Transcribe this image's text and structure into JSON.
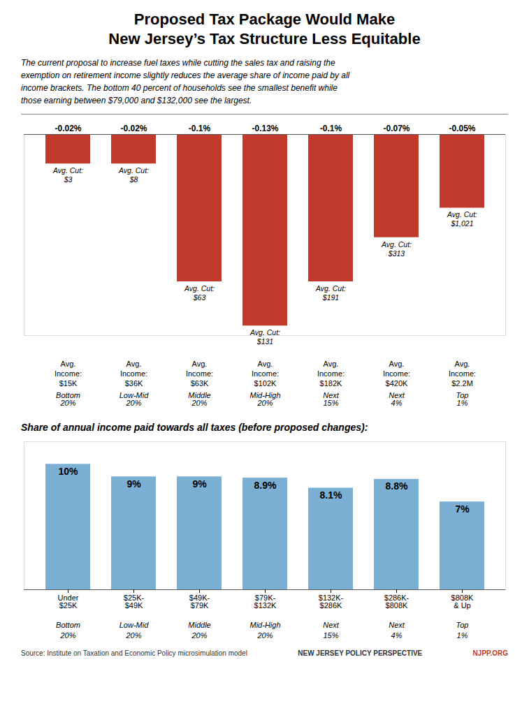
{
  "title": "Proposed Tax Package Would Make\nNew Jersey’s Tax Structure Less Equitable",
  "subtitle": "The current proposal to increase fuel taxes while cutting the sales tax and raising the\nexemption on retirement income slightly reduces the average share of income paid by all\nincome brackets. The bottom 40 percent of households see the smallest benefit while\nthose earning between $79,000 and $132,000 see the largest.",
  "source": "Source: Institute on Taxation and Economic Policy microsimulation model",
  "org": "NEW JERSEY POLICY PERSPECTIVE",
  "site": "NJPP.ORG",
  "site_color": "#c0392b",
  "chart_data": [
    {
      "type": "bar",
      "categories": [
        "Bottom\n20%",
        "Low-Mid\n20%",
        "Middle\n20%",
        "Mid-High\n20%",
        "Next\n15%",
        "Next\n4%",
        "Top\n1%"
      ],
      "values": [
        -0.02,
        -0.02,
        -0.1,
        -0.13,
        -0.1,
        -0.07,
        -0.05
      ],
      "value_labels": [
        "-0.02%",
        "-0.02%",
        "-0.1%",
        "-0.13%",
        "-0.1%",
        "-0.07%",
        "-0.05%"
      ],
      "data_labels": true,
      "color": "#c0392b",
      "ylim": [
        -0.1365,
        0
      ],
      "tick_labels": "x",
      "cut_labels": [
        "Avg. Cut:\n$3",
        "Avg. Cut:\n$8",
        "Avg. Cut:\n$63",
        "Avg. Cut:\n$131",
        "Avg. Cut:\n$191",
        "Avg. Cut:\n$313",
        "Avg. Cut:\n$1,021"
      ],
      "income_labels": [
        "Avg.\nIncome:\n$15K",
        "Avg.\nIncome:\n$36K",
        "Avg.\nIncome:\n$63K",
        "Avg.\nIncome:\n$102K",
        "Avg.\nIncome:\n$182K",
        "Avg.\nIncome:\n$420K",
        "Avg.\nIncome:\n$2.2M"
      ]
    },
    {
      "type": "bar",
      "title": "Share of annual income paid towards all taxes (before proposed changes):",
      "categories": [
        "Under\n$25K",
        "$25K-\n$49K",
        "$49K-\n$79K",
        "$79K-\n$132K",
        "$132K-\n$286K",
        "$286K-\n$808K",
        "$808K\n& Up"
      ],
      "values": [
        10.0,
        9.0,
        9.0,
        8.9,
        8.1,
        8.8,
        7.0
      ],
      "value_labels": [
        "10%",
        "9%",
        "9%",
        "8.9%",
        "8.1%",
        "8.8%",
        "7%"
      ],
      "data_labels": true,
      "color": "#7bafd4",
      "ylim": [
        0,
        11.8
      ],
      "tick_labels": "x",
      "sub_labels": [
        "Bottom\n20%",
        "Low-Mid\n20%",
        "Middle\n20%",
        "Mid-High\n20%",
        "Next\n15%",
        "Next\n4%",
        "Top\n1%"
      ]
    }
  ]
}
